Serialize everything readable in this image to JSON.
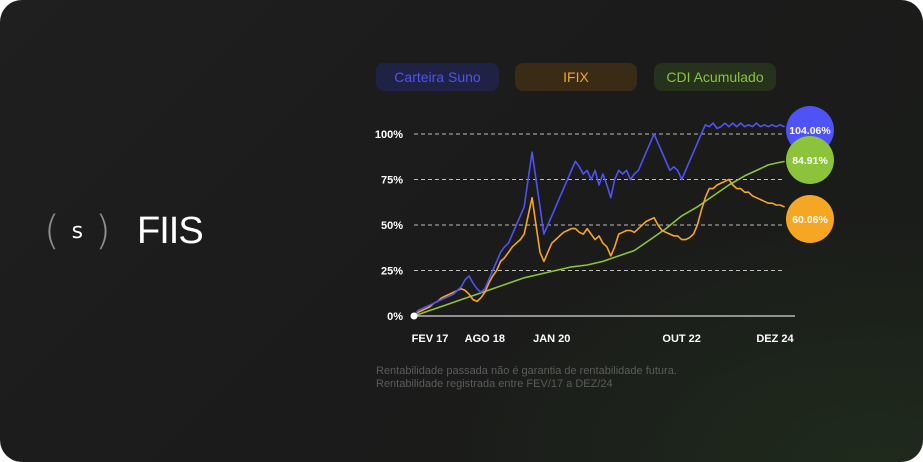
{
  "brand": {
    "logo_letter": "s",
    "paren_left": "(",
    "paren_right": ")",
    "title": "FIIS"
  },
  "legend": [
    {
      "label": "Carteira Suno",
      "text_color": "#4f52f5",
      "bg_color": "#1f2245"
    },
    {
      "label": "IFIX",
      "text_color": "#f5a623",
      "bg_color": "#3a2b16"
    },
    {
      "label": "CDI Acumulado",
      "text_color": "#8bc43a",
      "bg_color": "#26321c"
    }
  ],
  "disclaimer": {
    "line1": "Rentabilidade passada não é garantia de rentabilidade futura.",
    "line2": "Rentabilidade registrada entre FEV/17 a DEZ/24"
  },
  "chart_data": {
    "type": "line",
    "x_tick_labels": [
      "FEV 17",
      "AGO 18",
      "JAN 20",
      "OUT 22",
      "DEZ 24"
    ],
    "x_tick_months": [
      0,
      18,
      35,
      68,
      94
    ],
    "y_ticks": [
      0,
      25,
      50,
      75,
      100
    ],
    "y_tick_labels": [
      "0%",
      "25%",
      "50%",
      "75%",
      "100%"
    ],
    "xlim": [
      0,
      94
    ],
    "ylim": [
      0,
      100
    ],
    "grid": "dashed horizontal",
    "colors": {
      "suno": "#4f52f5",
      "ifix": "#f5a623",
      "cdi": "#8bc43a"
    },
    "series": [
      {
        "name": "Carteira Suno",
        "end_label": "104.06%",
        "x": [
          0,
          1,
          2,
          3,
          4,
          5,
          6,
          7,
          8,
          9,
          10,
          11,
          12,
          13,
          14,
          15,
          16,
          17,
          18,
          19,
          20,
          21,
          22,
          23,
          24,
          25,
          26,
          27,
          28,
          29,
          30,
          31,
          32,
          33,
          34,
          35,
          36,
          37,
          38,
          39,
          40,
          41,
          42,
          43,
          44,
          45,
          46,
          47,
          48,
          49,
          50,
          51,
          52,
          53,
          54,
          55,
          56,
          57,
          58,
          59,
          60,
          61,
          62,
          63,
          64,
          65,
          66,
          67,
          68,
          69,
          70,
          71,
          72,
          73,
          74,
          75,
          76,
          77,
          78,
          79,
          80,
          81,
          82,
          83,
          84,
          85,
          86,
          87,
          88,
          89,
          90,
          91,
          92,
          93,
          94
        ],
        "values": [
          0,
          3,
          4,
          5,
          6,
          7,
          8,
          9,
          10,
          11,
          12,
          14,
          16,
          20,
          22,
          18,
          15,
          13,
          15,
          20,
          25,
          30,
          35,
          38,
          40,
          45,
          50,
          55,
          60,
          75,
          90,
          75,
          60,
          45,
          50,
          55,
          60,
          65,
          70,
          75,
          80,
          85,
          82,
          78,
          80,
          75,
          80,
          72,
          78,
          72,
          65,
          75,
          80,
          78,
          80,
          75,
          78,
          80,
          85,
          90,
          95,
          100,
          95,
          90,
          85,
          80,
          82,
          80,
          75,
          80,
          85,
          90,
          95,
          100,
          105,
          104,
          106,
          103,
          104,
          106,
          104,
          106,
          104,
          106,
          104,
          105,
          104,
          106,
          104,
          105,
          104,
          105,
          104,
          105,
          104.06
        ]
      },
      {
        "name": "IFIX",
        "end_label": "60.06%",
        "x": [
          0,
          1,
          2,
          3,
          4,
          5,
          6,
          7,
          8,
          9,
          10,
          11,
          12,
          13,
          14,
          15,
          16,
          17,
          18,
          19,
          20,
          21,
          22,
          23,
          24,
          25,
          26,
          27,
          28,
          29,
          30,
          31,
          32,
          33,
          34,
          35,
          36,
          37,
          38,
          39,
          40,
          41,
          42,
          43,
          44,
          45,
          46,
          47,
          48,
          49,
          50,
          51,
          52,
          53,
          54,
          55,
          56,
          57,
          58,
          59,
          60,
          61,
          62,
          63,
          64,
          65,
          66,
          67,
          68,
          69,
          70,
          71,
          72,
          73,
          74,
          75,
          76,
          77,
          78,
          79,
          80,
          81,
          82,
          83,
          84,
          85,
          86,
          87,
          88,
          89,
          90,
          91,
          92,
          93,
          94
        ],
        "values": [
          0,
          2,
          3,
          4,
          5,
          7,
          8,
          10,
          11,
          12,
          13,
          14,
          15,
          14,
          12,
          9,
          8,
          10,
          13,
          18,
          22,
          25,
          30,
          32,
          35,
          38,
          40,
          42,
          45,
          55,
          65,
          50,
          35,
          30,
          35,
          40,
          42,
          44,
          46,
          47,
          48,
          48,
          46,
          45,
          48,
          45,
          42,
          44,
          40,
          38,
          33,
          38,
          45,
          46,
          47,
          47,
          46,
          48,
          50,
          52,
          53,
          54,
          50,
          47,
          46,
          45,
          44,
          44,
          42,
          42,
          43,
          45,
          50,
          58,
          65,
          70,
          70,
          72,
          73,
          74,
          75,
          72,
          70,
          70,
          68,
          68,
          66,
          65,
          64,
          63,
          62,
          62,
          61,
          61,
          60.06
        ]
      },
      {
        "name": "CDI Acumulado",
        "end_label": "84.91%",
        "x": [
          0,
          4,
          8,
          12,
          16,
          20,
          24,
          28,
          32,
          36,
          40,
          44,
          48,
          52,
          56,
          60,
          64,
          68,
          72,
          76,
          80,
          84,
          88,
          90,
          92,
          94
        ],
        "values": [
          0,
          3,
          6,
          9,
          12,
          15,
          18,
          21,
          23,
          25,
          27,
          28,
          30,
          33,
          36,
          42,
          48,
          55,
          60,
          66,
          72,
          77,
          81,
          83,
          84,
          84.91
        ]
      }
    ]
  }
}
